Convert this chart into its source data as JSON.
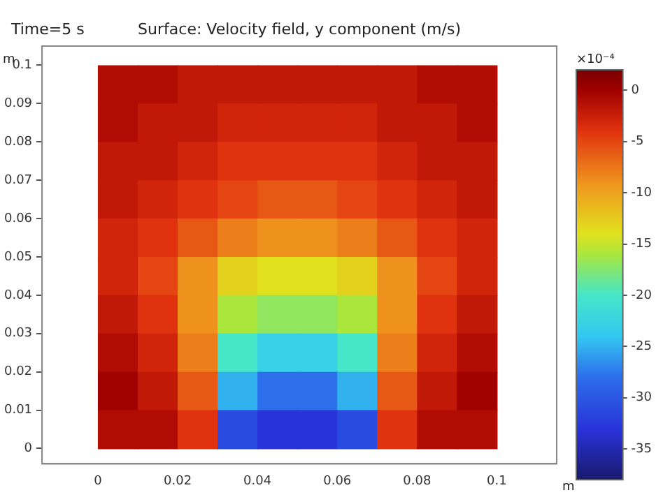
{
  "chart_data": {
    "type": "heatmap",
    "title": "Surface: Velocity field, y component (m/s)",
    "annotations": [
      "Time=5 s"
    ],
    "xlabel": "m",
    "ylabel": "m",
    "clabel": "×10⁻⁴",
    "x": [
      0.005,
      0.015,
      0.025,
      0.035,
      0.045,
      0.055,
      0.065,
      0.075,
      0.085,
      0.095
    ],
    "y": [
      0.095,
      0.085,
      0.075,
      0.065,
      0.055,
      0.045,
      0.035,
      0.025,
      0.015,
      0.005
    ],
    "cells": [
      [
        -1,
        -1,
        -2,
        -2,
        -2,
        -2,
        -2,
        -2,
        -1,
        -1
      ],
      [
        -1,
        -2,
        -2,
        -3,
        -3,
        -3,
        -3,
        -2,
        -2,
        -1
      ],
      [
        -2,
        -2,
        -3,
        -4,
        -4,
        -4,
        -4,
        -3,
        -2,
        -2
      ],
      [
        -2,
        -3,
        -4,
        -5,
        -6,
        -6,
        -5,
        -4,
        -3,
        -2
      ],
      [
        -3,
        -4,
        -6,
        -8,
        -9,
        -9,
        -8,
        -6,
        -4,
        -3
      ],
      [
        -3,
        -5,
        -9,
        -13,
        -14,
        -14,
        -13,
        -9,
        -5,
        -3
      ],
      [
        -2,
        -4,
        -9,
        -16,
        -17,
        -17,
        -16,
        -9,
        -4,
        -2
      ],
      [
        -1,
        -3,
        -8,
        -20,
        -23,
        -23,
        -20,
        -8,
        -3,
        -1
      ],
      [
        0,
        -2,
        -6,
        -25,
        -28,
        -28,
        -25,
        -6,
        -2,
        0
      ],
      [
        -1,
        -1,
        -4,
        -31,
        -33,
        -33,
        -31,
        -4,
        -1,
        -1
      ]
    ],
    "xlim": [
      -0.014,
      0.115
    ],
    "ylim": [
      -0.004,
      0.105
    ],
    "xticks": [
      0,
      0.02,
      0.04,
      0.06,
      0.08,
      0.1
    ],
    "yticks": [
      0,
      0.01,
      0.02,
      0.03,
      0.04,
      0.05,
      0.06,
      0.07,
      0.08,
      0.09,
      0.1
    ],
    "clim": [
      -38,
      2
    ],
    "cticks": [
      0,
      -5,
      -10,
      -15,
      -20,
      -25,
      -30,
      -35
    ],
    "grid": false
  }
}
